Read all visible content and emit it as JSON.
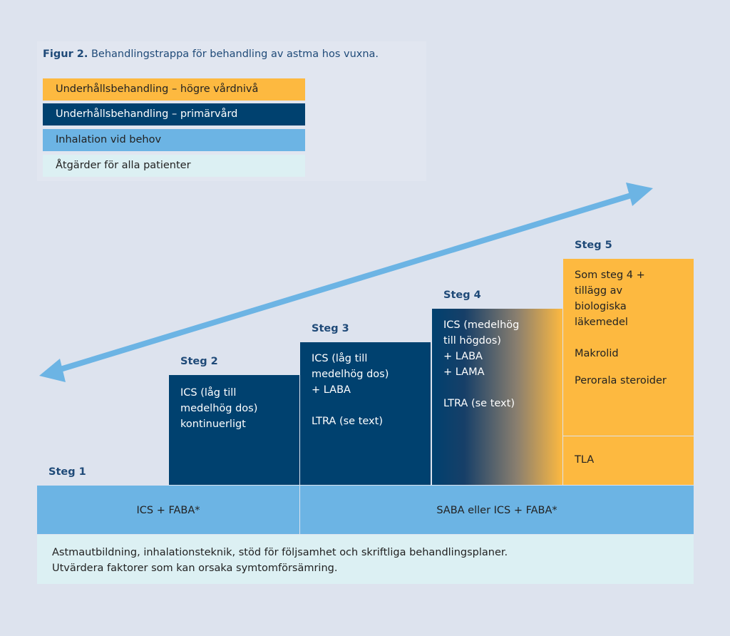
{
  "title": {
    "prefix": "Figur 2.",
    "text": " Behandlingstrappa för behandling av astma hos vuxna."
  },
  "legend": [
    {
      "label": "Underhållsbehandling – högre vårdnivå",
      "color": "#fdb940"
    },
    {
      "label": "Underhållsbehandling – primärvård",
      "color": "#00416f"
    },
    {
      "label": "Inhalation vid behov",
      "color": "#6cb4e4"
    },
    {
      "label": "Åtgärder för alla patienter",
      "color": "#dcf0f3"
    }
  ],
  "steps": [
    {
      "label": "Steg 1"
    },
    {
      "label": "Steg 2",
      "lines": [
        "ICS (låg till",
        "medelhög dos)",
        "kontinuerligt"
      ]
    },
    {
      "label": "Steg 3",
      "lines": [
        "ICS (låg till",
        "medelhög dos)",
        "+ LABA"
      ],
      "extra": "LTRA (se text)"
    },
    {
      "label": "Steg 4",
      "lines": [
        "ICS (medelhög",
        "till högdos)",
        "+ LABA",
        "+ LAMA"
      ],
      "extra": "LTRA (se text)"
    },
    {
      "label": "Steg 5",
      "lines": [
        "Som steg 4 +",
        "tillägg av",
        "biologiska",
        "läkemedel"
      ],
      "extra1": "Makrolid",
      "extra2": "Perorala steroider",
      "bottom": "TLA"
    }
  ],
  "reliever": {
    "left": "ICS + FABA*",
    "right": "SABA eller ICS + FABA*"
  },
  "all_patients": {
    "line1": "Astmautbildning, inhalationsteknik, stöd för följsamhet och skriftliga behandlingsplaner.",
    "line2": "Utvärdera faktorer som kan orsaka symtomförsämring."
  }
}
